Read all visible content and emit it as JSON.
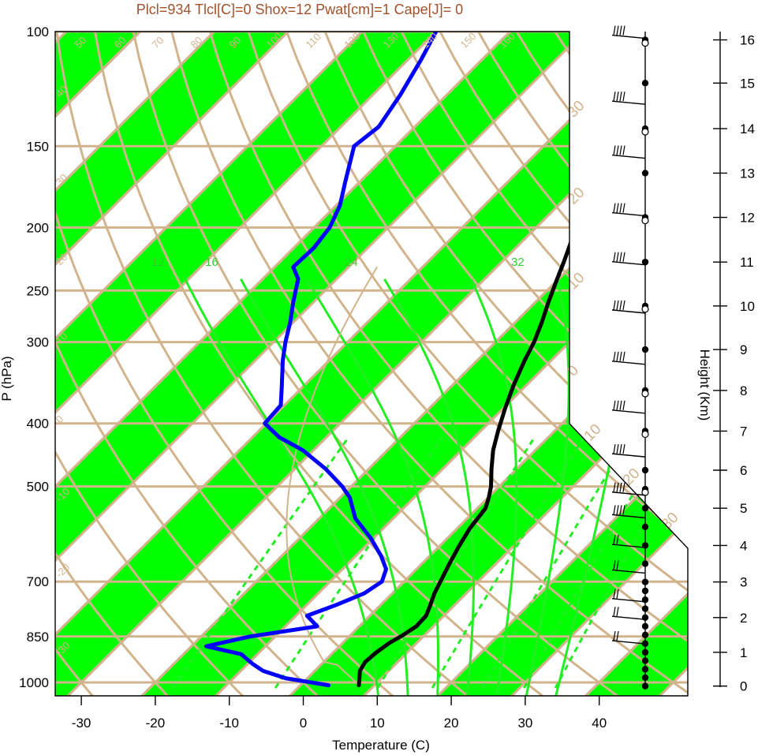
{
  "chart_data": {
    "type": "line",
    "title": "Plcl=934 Tlcl[C]=0 Shox=12 Pwat[cm]=1 Cape[J]= 0",
    "xlabel": "Temperature (C)",
    "ylabel": "P (hPa)",
    "y2label": "Height (Km)",
    "xlim": [
      -34,
      52
    ],
    "ylim_hpa": [
      1050,
      100
    ],
    "pressure_ticks": [
      {
        "p": 100,
        "label": "100"
      },
      {
        "p": 150,
        "label": "150"
      },
      {
        "p": 200,
        "label": "200"
      },
      {
        "p": 250,
        "label": "250"
      },
      {
        "p": 300,
        "label": "300"
      },
      {
        "p": 400,
        "label": "400"
      },
      {
        "p": 500,
        "label": "500"
      },
      {
        "p": 700,
        "label": "700"
      },
      {
        "p": 850,
        "label": "850"
      },
      {
        "p": 1000,
        "label": "1000"
      }
    ],
    "temperature_ticks": [
      {
        "t": -30,
        "label": "-30"
      },
      {
        "t": -20,
        "label": "-20"
      },
      {
        "t": -10,
        "label": "-10"
      },
      {
        "t": 0,
        "label": "0"
      },
      {
        "t": 10,
        "label": "10"
      },
      {
        "t": 20,
        "label": "20"
      },
      {
        "t": 30,
        "label": "30"
      },
      {
        "t": 40,
        "label": "40"
      }
    ],
    "height_ticks": [
      {
        "km": 0,
        "label": "0"
      },
      {
        "km": 1,
        "label": "1"
      },
      {
        "km": 2,
        "label": "2"
      },
      {
        "km": 3,
        "label": "3"
      },
      {
        "km": 4,
        "label": "4"
      },
      {
        "km": 5,
        "label": "5"
      },
      {
        "km": 6,
        "label": "6"
      },
      {
        "km": 7,
        "label": "7"
      },
      {
        "km": 8,
        "label": "8"
      },
      {
        "km": 9,
        "label": "9"
      },
      {
        "km": 10,
        "label": "10"
      },
      {
        "km": 11,
        "label": "11"
      },
      {
        "km": 12,
        "label": "12"
      },
      {
        "km": 13,
        "label": "13"
      },
      {
        "km": 14,
        "label": "14"
      },
      {
        "km": 15,
        "label": "15"
      },
      {
        "km": 16,
        "label": "16"
      }
    ],
    "height_pressure_map": [
      [
        0,
        1013
      ],
      [
        1,
        899
      ],
      [
        2,
        795
      ],
      [
        3,
        701
      ],
      [
        4,
        616
      ],
      [
        5,
        540
      ],
      [
        6,
        472
      ],
      [
        7,
        411
      ],
      [
        8,
        356
      ],
      [
        9,
        308
      ],
      [
        10,
        264
      ],
      [
        11,
        226
      ],
      [
        12,
        193
      ],
      [
        13,
        165
      ],
      [
        14,
        141
      ],
      [
        15,
        120
      ],
      [
        16,
        103
      ]
    ],
    "temperature_profile": {
      "name": "",
      "color": "#000000",
      "points": [
        [
          1010,
          7.9
        ],
        [
          990,
          7.2
        ],
        [
          960,
          6.1
        ],
        [
          930,
          5.6
        ],
        [
          900,
          5.8
        ],
        [
          870,
          6.3
        ],
        [
          845,
          7.1
        ],
        [
          820,
          7.7
        ],
        [
          790,
          7.6
        ],
        [
          760,
          6.7
        ],
        [
          730,
          5.7
        ],
        [
          700,
          4.9
        ],
        [
          660,
          3.8
        ],
        [
          620,
          2.7
        ],
        [
          580,
          1.7
        ],
        [
          540,
          1.1
        ],
        [
          520,
          0.1
        ],
        [
          500,
          -1.1
        ],
        [
          470,
          -3.4
        ],
        [
          440,
          -5.7
        ],
        [
          410,
          -7.7
        ],
        [
          380,
          -9.7
        ],
        [
          350,
          -11.7
        ],
        [
          320,
          -13.6
        ],
        [
          300,
          -14.8
        ],
        [
          280,
          -16.4
        ],
        [
          260,
          -18.3
        ],
        [
          240,
          -20.2
        ],
        [
          225,
          -21.7
        ],
        [
          210,
          -23.4
        ],
        [
          200,
          -25.1
        ],
        [
          185,
          -26.9
        ],
        [
          170,
          -29.3
        ],
        [
          155,
          -31.6
        ],
        [
          140,
          -34.3
        ],
        [
          125,
          -37.4
        ],
        [
          110,
          -41.6
        ],
        [
          100,
          -44.2
        ]
      ]
    },
    "dewpoint_profile": {
      "name": "",
      "color": "#0000ff",
      "points": [
        [
          1010,
          3.8
        ],
        [
          985,
          -3.0
        ],
        [
          960,
          -7.0
        ],
        [
          935,
          -9.5
        ],
        [
          905,
          -12.2
        ],
        [
          880,
          -18.0
        ],
        [
          850,
          -13.4
        ],
        [
          820,
          -5.7
        ],
        [
          790,
          -8.5
        ],
        [
          760,
          -6.0
        ],
        [
          730,
          -3.8
        ],
        [
          700,
          -3.0
        ],
        [
          670,
          -4.1
        ],
        [
          640,
          -6.5
        ],
        [
          600,
          -10.4
        ],
        [
          560,
          -15.1
        ],
        [
          520,
          -18.7
        ],
        [
          500,
          -21.2
        ],
        [
          470,
          -25.8
        ],
        [
          440,
          -31.4
        ],
        [
          420,
          -36.4
        ],
        [
          400,
          -40.2
        ],
        [
          375,
          -40.5
        ],
        [
          350,
          -43.0
        ],
        [
          320,
          -46.3
        ],
        [
          300,
          -48.4
        ],
        [
          280,
          -50.4
        ],
        [
          260,
          -52.8
        ],
        [
          240,
          -55.2
        ],
        [
          230,
          -57.5
        ],
        [
          215,
          -57.3
        ],
        [
          200,
          -57.9
        ],
        [
          185,
          -59.5
        ],
        [
          170,
          -62.0
        ],
        [
          150,
          -65.6
        ],
        [
          140,
          -64.9
        ],
        [
          125,
          -66.3
        ],
        [
          110,
          -68.3
        ],
        [
          100,
          -70.0
        ]
      ]
    },
    "isotherm_labels": [
      "50",
      "60",
      "70",
      "80",
      "90",
      "100",
      "110",
      "120",
      "130",
      "140",
      "150",
      "160",
      "40",
      "30",
      "20",
      "10",
      "0",
      "-10",
      "-20",
      "-30"
    ],
    "isotherm_side_labels": [
      "30",
      "20",
      "10",
      "0",
      "10",
      "20",
      "30"
    ],
    "mixing_ratio_labels": [
      "12",
      "16",
      "24",
      "32"
    ],
    "wind_levels_km": [
      0,
      0.25,
      0.5,
      0.75,
      1,
      1.25,
      1.5,
      1.75,
      2,
      2.25,
      2.5,
      2.75,
      3,
      3.5,
      4,
      4.5,
      5,
      5.5,
      6,
      7,
      8,
      9,
      10,
      11,
      12,
      13,
      14,
      15,
      16
    ],
    "wind_open_circle_km": [
      5.5,
      7,
      8,
      10,
      12,
      14,
      16
    ],
    "wind_barbs_km": [
      16,
      14.5,
      13.3,
      12,
      10.9,
      9.8,
      8.6,
      7.4,
      6.3,
      5.3,
      4.7,
      3.9,
      3.2,
      2.4,
      1.9,
      1.2
    ]
  }
}
